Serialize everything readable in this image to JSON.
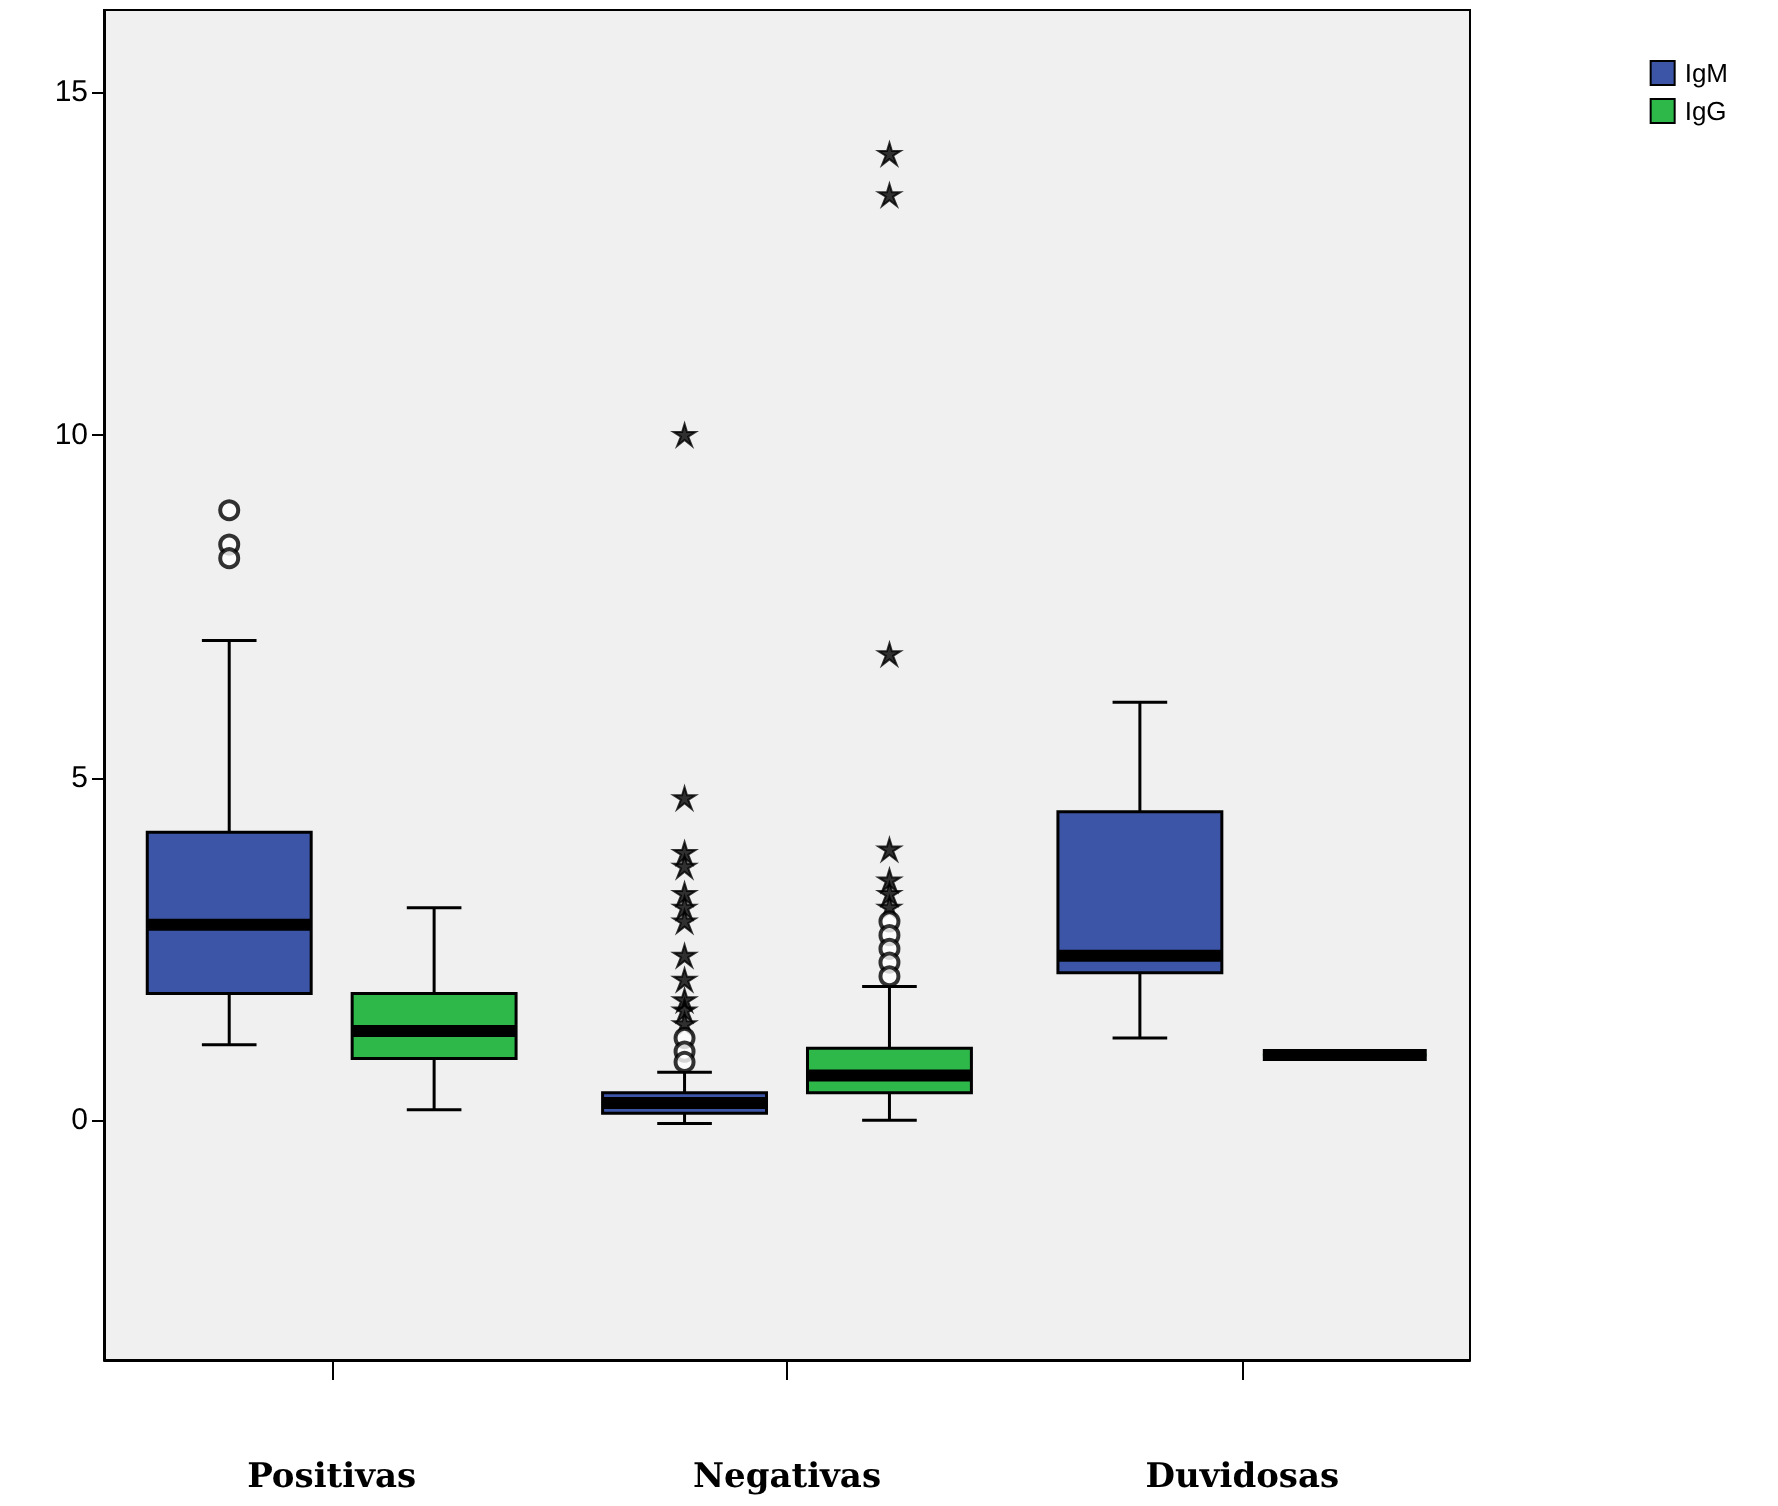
{
  "chart_data": {
    "type": "box",
    "categories": [
      "Positivas",
      "Negativas",
      "Duvidosas"
    ],
    "ylim": [
      -3.5,
      16.2
    ],
    "yticks": [
      0,
      5,
      10,
      15
    ],
    "grid": false,
    "legend": "top right",
    "series": [
      {
        "name": "IgM",
        "color": "#3c55a6",
        "boxes": [
          {
            "low": 1.1,
            "q1": 1.85,
            "median": 2.85,
            "q3": 4.2,
            "high": 7.0,
            "outliers": [
              8.9,
              8.4,
              8.2
            ]
          },
          {
            "low": -0.05,
            "q1": 0.1,
            "median": 0.25,
            "q3": 0.4,
            "high": 0.7,
            "outliers": [
              10.0,
              4.7,
              3.9,
              3.7,
              3.3,
              3.1,
              2.9,
              2.4,
              2.05,
              1.75,
              1.6,
              1.4,
              1.2,
              1.0,
              0.85
            ]
          },
          {
            "low": 1.2,
            "q1": 2.15,
            "median": 2.4,
            "q3": 4.5,
            "high": 6.1
          }
        ]
      },
      {
        "name": "IgG",
        "color": "#2eb84a",
        "boxes": [
          {
            "low": 0.15,
            "q1": 0.9,
            "median": 1.3,
            "q3": 1.85,
            "high": 3.1
          },
          {
            "low": 0.0,
            "q1": 0.4,
            "median": 0.65,
            "q3": 1.05,
            "high": 1.95,
            "outliers": [
              14.1,
              13.5,
              6.8,
              3.95,
              3.5,
              3.3,
              3.1,
              2.9,
              2.7,
              2.5,
              2.3,
              2.1
            ]
          },
          {
            "low": 0.95,
            "q1": 0.95,
            "median": 0.95,
            "q3": 0.95,
            "high": 0.95
          }
        ]
      }
    ]
  }
}
